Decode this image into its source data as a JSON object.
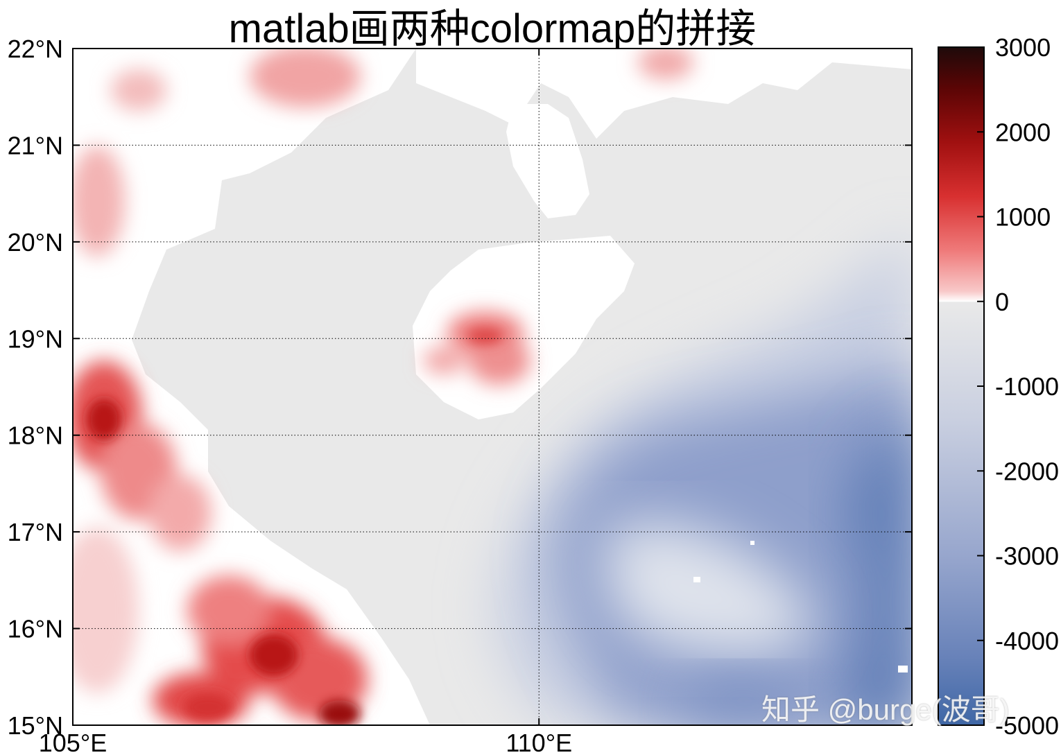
{
  "chart_data": {
    "type": "heatmap",
    "title": "matlab画两种colormap的拼接",
    "x_ticks": [
      {
        "value": 105,
        "label": "105°E"
      },
      {
        "value": 110,
        "label": "110°E"
      }
    ],
    "y_ticks": [
      {
        "value": 15,
        "label": "15°N"
      },
      {
        "value": 16,
        "label": "16°N"
      },
      {
        "value": 17,
        "label": "17°N"
      },
      {
        "value": 18,
        "label": "18°N"
      },
      {
        "value": 19,
        "label": "19°N"
      },
      {
        "value": 20,
        "label": "20°N"
      },
      {
        "value": 21,
        "label": "21°N"
      },
      {
        "value": 22,
        "label": "22°N"
      }
    ],
    "xlim": [
      105,
      114
    ],
    "ylim": [
      15,
      22
    ],
    "grid": true,
    "grid_style": "dotted",
    "colorbar": {
      "location": "right",
      "limits": [
        -5000,
        3000
      ],
      "ticks": [
        3000,
        2000,
        1000,
        0,
        -1000,
        -2000,
        -3000,
        -4000,
        -5000
      ],
      "tick_labels": [
        "3000",
        "2000",
        "1000",
        "0",
        "-1000",
        "-2000",
        "-3000",
        "-4000",
        "-5000"
      ],
      "positive_colormap": [
        "#ffffff",
        "#f4a6a6",
        "#e0403f",
        "#b01010",
        "#5a0505",
        "#200a0a"
      ],
      "negative_colormap": [
        "#e8e8e8",
        "#c9cfe0",
        "#97a6cd",
        "#6882b9",
        "#3f67a6"
      ]
    },
    "land_color_low": "#ffffff",
    "land_color_high": "#c21a1a",
    "shallow_sea_color": "#e8e8e8",
    "deep_sea_color": "#6a84bb"
  },
  "watermark": "知乎 @burge(波哥)"
}
